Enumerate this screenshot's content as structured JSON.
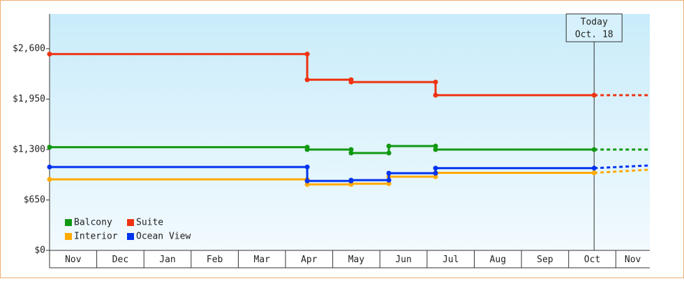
{
  "chart_data": {
    "type": "line",
    "categories": [
      "Nov",
      "Dec",
      "Jan",
      "Feb",
      "Mar",
      "Apr",
      "May",
      "Jun",
      "Jul",
      "Aug",
      "Sep",
      "Oct",
      "Nov"
    ],
    "xlim": [
      0,
      12.72
    ],
    "ylim": [
      0,
      3048
    ],
    "yticks": [
      {
        "value": 0,
        "label": "$0"
      },
      {
        "value": 650,
        "label": "$650"
      },
      {
        "value": 1300,
        "label": "$1,300"
      },
      {
        "value": 1950,
        "label": "$1,950"
      },
      {
        "value": 2600,
        "label": "$2,600"
      }
    ],
    "annotation": {
      "x": 11.54,
      "lines": [
        "Today",
        "Oct. 18"
      ]
    },
    "series": [
      {
        "name": "Balcony",
        "color": "#119911",
        "x": [
          0,
          5.46,
          5.46,
          6.39,
          6.39,
          7.19,
          7.19,
          8.18,
          8.18,
          11.54
        ],
        "values": [
          1330,
          1330,
          1300,
          1300,
          1255,
          1255,
          1345,
          1345,
          1300,
          1300
        ],
        "forecast": {
          "x": [
            11.54,
            12.72
          ],
          "values": [
            1300,
            1300
          ]
        }
      },
      {
        "name": "Suite",
        "color": "#ee3311",
        "x": [
          0,
          5.46,
          5.46,
          6.39,
          6.39,
          8.18,
          8.18,
          11.54
        ],
        "values": [
          2530,
          2530,
          2200,
          2200,
          2170,
          2170,
          2000,
          2000
        ],
        "forecast": {
          "x": [
            11.54,
            12.72
          ],
          "values": [
            2000,
            2000
          ]
        }
      },
      {
        "name": "Interior",
        "color": "#ffaa00",
        "x": [
          0,
          5.46,
          5.46,
          6.39,
          6.39,
          7.19,
          7.19,
          8.18,
          8.18,
          11.54
        ],
        "values": [
          915,
          915,
          850,
          850,
          860,
          860,
          950,
          950,
          1000,
          1000
        ],
        "forecast": {
          "x": [
            11.54,
            12.72
          ],
          "values": [
            1000,
            1040
          ]
        }
      },
      {
        "name": "Ocean View",
        "color": "#0033ee",
        "x": [
          0,
          5.46,
          5.46,
          6.39,
          6.39,
          7.19,
          7.19,
          8.18,
          8.18,
          11.54
        ],
        "values": [
          1075,
          1075,
          895,
          895,
          905,
          905,
          995,
          995,
          1060,
          1060
        ],
        "forecast": {
          "x": [
            11.54,
            12.72
          ],
          "values": [
            1060,
            1095
          ]
        }
      }
    ]
  }
}
